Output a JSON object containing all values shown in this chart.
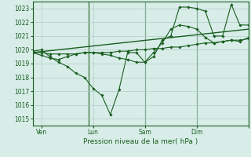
{
  "background_color": "#d8ede8",
  "grid_color": "#b0ccc8",
  "line_color": "#1a5e20",
  "marker_color": "#1a5e20",
  "xlabel": "Pression niveau de la mer( hPa )",
  "ylim": [
    1014.5,
    1023.5
  ],
  "yticks": [
    1015,
    1016,
    1017,
    1018,
    1019,
    1020,
    1021,
    1022,
    1023
  ],
  "xlim": [
    0,
    100
  ],
  "xtick_positions": [
    4,
    28,
    52,
    76,
    100
  ],
  "xtick_labels": [
    "Ven",
    "Lun",
    "Sam",
    "Dim",
    ""
  ],
  "vline_positions": [
    0,
    26,
    52,
    76,
    100
  ],
  "series": [
    {
      "x": [
        0,
        4,
        8,
        12,
        16,
        20,
        24,
        28,
        32,
        36,
        40,
        44,
        48,
        52,
        56,
        60,
        64,
        68,
        72,
        76,
        80,
        84,
        88,
        92,
        96,
        100
      ],
      "y": [
        1019.8,
        1019.8,
        1019.7,
        1019.7,
        1019.7,
        1019.7,
        1019.8,
        1019.8,
        1019.8,
        1019.8,
        1019.9,
        1019.9,
        1020.0,
        1020.0,
        1020.1,
        1020.1,
        1020.2,
        1020.2,
        1020.3,
        1020.4,
        1020.5,
        1020.5,
        1020.6,
        1020.7,
        1020.7,
        1020.8
      ]
    },
    {
      "x": [
        0,
        4,
        8,
        12,
        16,
        20,
        24,
        28,
        32,
        36,
        40,
        44,
        48,
        52,
        56,
        60,
        64,
        68,
        72,
        76,
        80,
        84,
        88,
        92,
        96,
        100
      ],
      "y": [
        1019.8,
        1019.6,
        1019.4,
        1019.3,
        1019.5,
        1019.7,
        1019.8,
        1019.8,
        1019.7,
        1019.6,
        1019.4,
        1019.3,
        1019.1,
        1019.1,
        1019.8,
        1020.5,
        1021.5,
        1021.8,
        1021.7,
        1021.5,
        1020.9,
        1020.5,
        1020.6,
        1020.7,
        1020.6,
        1020.9
      ]
    },
    {
      "x": [
        0,
        4,
        8,
        12,
        16,
        20,
        24,
        28,
        32,
        36,
        40,
        44,
        48,
        52,
        56,
        60,
        64,
        68,
        72,
        76,
        80,
        84,
        88,
        92,
        96,
        100
      ],
      "y": [
        1019.9,
        1020.0,
        1019.5,
        1019.1,
        1018.8,
        1018.3,
        1018.0,
        1017.2,
        1016.7,
        1015.3,
        1017.1,
        1019.8,
        1019.8,
        1019.1,
        1019.5,
        1020.7,
        1021.0,
        1023.1,
        1023.1,
        1023.0,
        1022.8,
        1021.0,
        1021.0,
        1023.3,
        1021.8,
        1021.8
      ]
    },
    {
      "x": [
        0,
        100
      ],
      "y": [
        1019.8,
        1021.5
      ]
    }
  ]
}
